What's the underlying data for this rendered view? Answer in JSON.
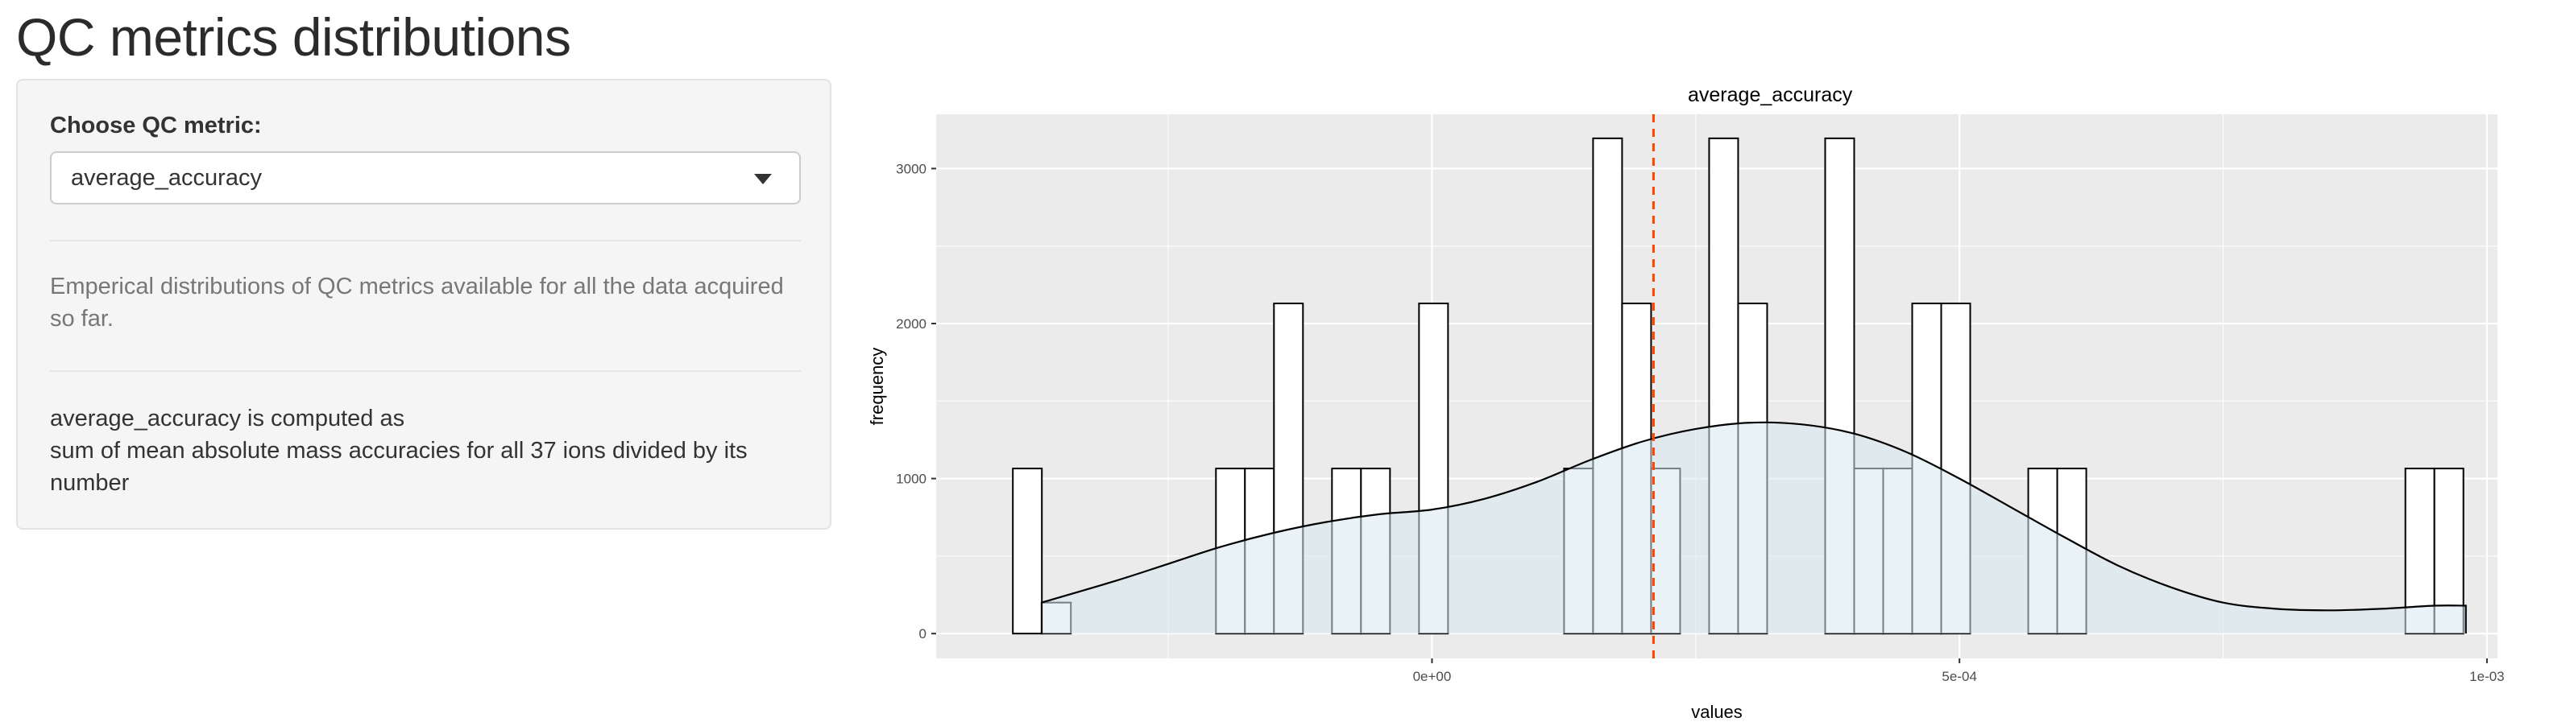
{
  "page": {
    "title": "QC metrics distributions"
  },
  "sidebar": {
    "select_label": "Choose QC metric:",
    "selected_metric": "average_accuracy",
    "description": "Emperical distributions of QC metrics available for all the data acquired so far.",
    "formula_title": "average_accuracy is computed as",
    "formula_body": "sum of mean absolute mass accuracies for all 37 ions divided by its number"
  },
  "colors": {
    "panel_background": "#ebebeb",
    "grid": "#ffffff",
    "bar_fill": "#ffffff",
    "bar_stroke": "#000000",
    "density_fill": "#d6e8f0",
    "median_line": "#ff4500"
  },
  "chart_data": {
    "type": "bar",
    "subtype": "histogram with density overlay",
    "title": "average_accuracy",
    "xlabel": "values",
    "ylabel": "frequency",
    "xlim": [
      -0.00047,
      0.00101
    ],
    "ylim": [
      -160,
      3350
    ],
    "x_ticks": [
      0,
      0.0005,
      0.001
    ],
    "x_tick_labels": [
      "0e+00",
      "5e-04",
      "1e-03"
    ],
    "y_ticks": [
      0,
      1000,
      2000,
      3000
    ],
    "y_tick_labels": [
      "0",
      "1000",
      "2000",
      "3000"
    ],
    "grid": true,
    "legend": "none",
    "bin_width": 2.75e-05,
    "bins": [
      {
        "x0": -0.0003973,
        "x1": -0.0003698,
        "count": 1065
      },
      {
        "x0": -0.0003698,
        "x1": -0.0003423,
        "count": 200
      },
      {
        "x0": -0.0002048,
        "x1": -0.0001773,
        "count": 1065
      },
      {
        "x0": -0.0001773,
        "x1": -0.0001498,
        "count": 1065
      },
      {
        "x0": -0.0001498,
        "x1": -0.0001223,
        "count": 2130
      },
      {
        "x0": -9.48e-05,
        "x1": -6.73e-05,
        "count": 1065
      },
      {
        "x0": -6.73e-05,
        "x1": -3.98e-05,
        "count": 1065
      },
      {
        "x0": -1.23e-05,
        "x1": 1.52e-05,
        "count": 2130
      },
      {
        "x0": 0.0001252,
        "x1": 0.0001527,
        "count": 1065
      },
      {
        "x0": 0.0001527,
        "x1": 0.0001802,
        "count": 3195
      },
      {
        "x0": 0.0001802,
        "x1": 0.0002077,
        "count": 2130
      },
      {
        "x0": 0.0002077,
        "x1": 0.0002352,
        "count": 1065
      },
      {
        "x0": 0.0002627,
        "x1": 0.0002902,
        "count": 3195
      },
      {
        "x0": 0.0002902,
        "x1": 0.0003177,
        "count": 2130
      },
      {
        "x0": 0.0003727,
        "x1": 0.0004002,
        "count": 3195
      },
      {
        "x0": 0.0004002,
        "x1": 0.0004277,
        "count": 1065
      },
      {
        "x0": 0.0004277,
        "x1": 0.0004552,
        "count": 1065
      },
      {
        "x0": 0.0004552,
        "x1": 0.0004827,
        "count": 2130
      },
      {
        "x0": 0.0004827,
        "x1": 0.0005102,
        "count": 2130
      },
      {
        "x0": 0.0005652,
        "x1": 0.0005927,
        "count": 1065
      },
      {
        "x0": 0.0005927,
        "x1": 0.0006202,
        "count": 1065
      },
      {
        "x0": 0.0009227,
        "x1": 0.0009502,
        "count": 1065
      },
      {
        "x0": 0.0009502,
        "x1": 0.0009777,
        "count": 1065
      }
    ],
    "density": {
      "x": [
        -0.00037,
        -0.0003,
        -0.00025,
        -0.0002,
        -0.00015,
        -0.0001,
        -5e-05,
        0,
        5e-05,
        0.0001,
        0.00015,
        0.0002,
        0.00025,
        0.0003,
        0.00035,
        0.0004,
        0.00045,
        0.0005,
        0.00055,
        0.0006,
        0.00065,
        0.0007,
        0.00075,
        0.0008,
        0.00085,
        0.0009,
        0.00095,
        0.00098
      ],
      "y": [
        200,
        340,
        450,
        560,
        650,
        720,
        770,
        800,
        870,
        980,
        1120,
        1240,
        1320,
        1360,
        1350,
        1290,
        1170,
        1000,
        810,
        620,
        440,
        300,
        200,
        160,
        150,
        160,
        180,
        180
      ]
    },
    "reference_line": {
      "x": 0.00021,
      "style": "dashed"
    }
  }
}
